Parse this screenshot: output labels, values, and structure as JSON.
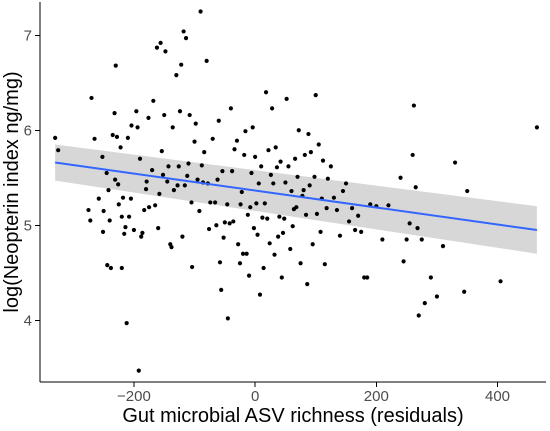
{
  "chart_data": {
    "type": "scatter",
    "title": "",
    "xlabel": "Gut microbial ASV richness (residuals)",
    "ylabel": "log(Neopterin index ng/mg)",
    "xlim": [
      -355,
      480
    ],
    "ylim": [
      3.35,
      7.35
    ],
    "xticks": [
      -200,
      0,
      200,
      400
    ],
    "yticks": [
      4,
      5,
      6,
      7
    ],
    "grid": false,
    "legend": "none",
    "colors": {
      "points": "#000000",
      "fit_line": "#3366ff",
      "confidence_band": "#bdbdbd",
      "axis": "#000000",
      "tick_label": "#4d4d4d"
    },
    "fit": {
      "x": [
        -330,
        465
      ],
      "y": [
        5.66,
        4.95
      ],
      "ci_lower": [
        5.47,
        4.7
      ],
      "ci_upper": [
        5.85,
        5.2
      ]
    },
    "x": [
      -330,
      -325,
      -275,
      -272,
      -270,
      -265,
      -258,
      -252,
      -251,
      -250,
      -245,
      -244,
      -242,
      -240,
      -238,
      -235,
      -232,
      -231,
      -230,
      -228,
      -226,
      -225,
      -222,
      -220,
      -220,
      -218,
      -216,
      -214,
      -212,
      -210,
      -208,
      -205,
      -204,
      -200,
      -196,
      -194,
      -192,
      -190,
      -188,
      -186,
      -183,
      -180,
      -179,
      -176,
      -175,
      -170,
      -168,
      -165,
      -162,
      -160,
      -158,
      -156,
      -154,
      -152,
      -150,
      -148,
      -145,
      -143,
      -140,
      -138,
      -136,
      -134,
      -130,
      -128,
      -126,
      -124,
      -122,
      -120,
      -118,
      -116,
      -114,
      -112,
      -110,
      -108,
      -105,
      -104,
      -100,
      -98,
      -95,
      -92,
      -90,
      -88,
      -86,
      -84,
      -80,
      -78,
      -76,
      -74,
      -70,
      -66,
      -64,
      -62,
      -60,
      -58,
      -56,
      -54,
      -52,
      -50,
      -46,
      -45,
      -42,
      -40,
      -38,
      -36,
      -34,
      -30,
      -28,
      -25,
      -24,
      -22,
      -20,
      -18,
      -16,
      -14,
      -12,
      -10,
      -8,
      -6,
      -4,
      -2,
      0,
      2,
      4,
      6,
      8,
      10,
      12,
      14,
      16,
      18,
      20,
      22,
      24,
      26,
      28,
      30,
      32,
      34,
      36,
      38,
      40,
      42,
      44,
      46,
      48,
      50,
      52,
      55,
      58,
      60,
      62,
      64,
      66,
      68,
      70,
      72,
      75,
      78,
      80,
      82,
      84,
      86,
      88,
      90,
      92,
      95,
      98,
      100,
      102,
      105,
      108,
      110,
      112,
      115,
      118,
      120,
      125,
      130,
      135,
      140,
      145,
      150,
      155,
      160,
      165,
      170,
      175,
      180,
      185,
      190,
      200,
      210,
      220,
      240,
      245,
      250,
      255,
      260,
      262,
      265,
      268,
      270,
      275,
      280,
      290,
      300,
      310,
      330,
      345,
      350,
      405,
      465
    ],
    "y": [
      5.92,
      5.79,
      5.16,
      5.05,
      6.34,
      5.91,
      5.28,
      5.72,
      4.93,
      5.15,
      5.55,
      4.58,
      5.37,
      5.05,
      4.55,
      5.95,
      6.18,
      5.48,
      6.68,
      5.93,
      5.43,
      5.22,
      5.82,
      5.09,
      4.55,
      5.29,
      4.91,
      4.98,
      3.97,
      5.92,
      5.09,
      5.28,
      6.05,
      4.95,
      6.2,
      6.03,
      3.47,
      5.7,
      4.88,
      4.92,
      5.16,
      5.38,
      5.46,
      6.13,
      5.19,
      5.58,
      6.31,
      5.21,
      6.87,
      4.97,
      5.33,
      6.92,
      5.78,
      5.53,
      6.16,
      6.83,
      5.46,
      5.62,
      4.8,
      4.77,
      6.03,
      5.37,
      6.58,
      5.42,
      5.62,
      6.2,
      6.69,
      4.88,
      7.04,
      5.42,
      6.97,
      5.52,
      5.65,
      6.16,
      5.24,
      4.56,
      5.88,
      6.07,
      5.48,
      5.15,
      7.25,
      5.63,
      5.45,
      5.77,
      6.73,
      5.44,
      4.96,
      5.24,
      5.91,
      5.24,
      5.0,
      5.48,
      6.1,
      4.61,
      4.32,
      5.57,
      4.87,
      5.03,
      5.22,
      4.02,
      5.02,
      6.23,
      5.57,
      5.04,
      5.8,
      5.89,
      4.8,
      4.6,
      5.22,
      5.35,
      4.7,
      5.74,
      5.99,
      4.7,
      5.11,
      4.47,
      5.19,
      5.55,
      6.03,
      4.97,
      5.72,
      5.23,
      4.9,
      5.44,
      4.27,
      5.62,
      5.08,
      4.55,
      5.23,
      6.4,
      5.07,
      5.79,
      4.81,
      5.53,
      6.23,
      5.44,
      4.69,
      5.82,
      5.61,
      4.88,
      5.09,
      5.67,
      4.45,
      4.92,
      5.07,
      5.45,
      6.33,
      5.62,
      4.75,
      5.36,
      4.99,
      5.17,
      5.7,
      5.19,
      5.51,
      6.0,
      4.6,
      5.31,
      5.37,
      5.74,
      5.11,
      4.38,
      5.96,
      5.42,
      5.77,
      4.8,
      5.51,
      6.37,
      5.12,
      5.85,
      4.93,
      5.28,
      5.68,
      4.59,
      5.18,
      5.49,
      5.62,
      5.29,
      5.16,
      4.89,
      5.36,
      5.44,
      5.04,
      5.18,
      4.95,
      5.1,
      4.93,
      4.45,
      4.45,
      5.22,
      5.2,
      4.85,
      5.21,
      5.5,
      4.62,
      4.85,
      5.02,
      5.74,
      6.26,
      5.4,
      4.97,
      4.05,
      4.85,
      4.18,
      4.45,
      4.25,
      4.78,
      5.66,
      4.3,
      5.36,
      4.41,
      6.03
    ]
  }
}
